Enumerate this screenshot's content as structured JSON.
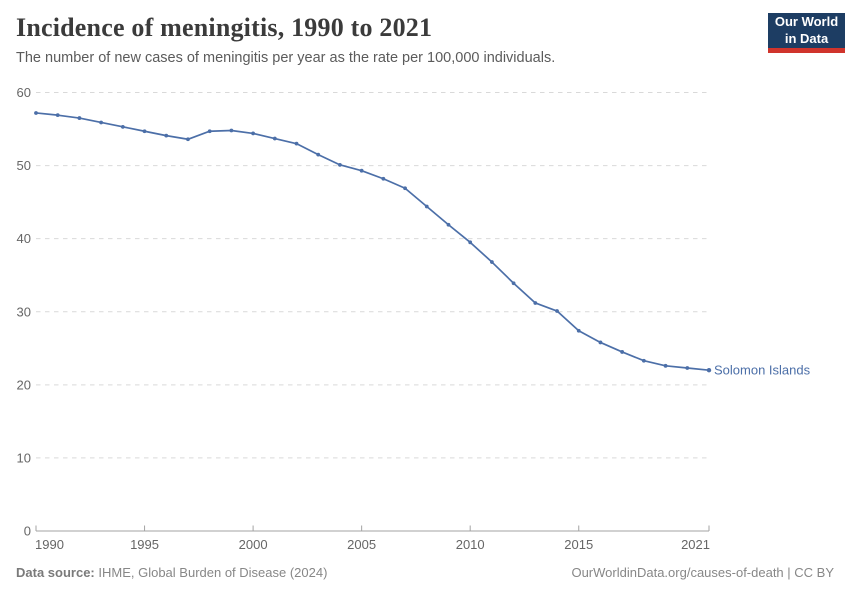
{
  "header": {
    "title": "Incidence of meningitis, 1990 to 2021",
    "subtitle": "The number of new cases of meningitis per year as the rate per 100,000 individuals.",
    "logo": {
      "line1": "Our World",
      "line2": "in Data",
      "bg_color": "#1d3d63",
      "accent_color": "#d0342c"
    }
  },
  "chart_data": {
    "type": "line",
    "title": "Incidence of meningitis, 1990 to 2021",
    "xlabel": "",
    "ylabel": "",
    "xlim": [
      1990,
      2021
    ],
    "ylim": [
      0,
      60
    ],
    "x_ticks": [
      1990,
      1995,
      2000,
      2005,
      2010,
      2015,
      2021
    ],
    "y_ticks": [
      0,
      10,
      20,
      30,
      40,
      50,
      60
    ],
    "grid": "horizontal-dashed",
    "legend_position": "end-of-line",
    "x": [
      1990,
      1991,
      1992,
      1993,
      1994,
      1995,
      1996,
      1997,
      1998,
      1999,
      2000,
      2001,
      2002,
      2003,
      2004,
      2005,
      2006,
      2007,
      2008,
      2009,
      2010,
      2011,
      2012,
      2013,
      2014,
      2015,
      2016,
      2017,
      2018,
      2019,
      2020,
      2021
    ],
    "series": [
      {
        "name": "Solomon Islands",
        "color": "#4c6fa8",
        "values": [
          57.2,
          56.9,
          56.5,
          55.9,
          55.3,
          54.7,
          54.1,
          53.6,
          54.7,
          54.8,
          54.4,
          53.7,
          53.0,
          51.5,
          50.1,
          49.3,
          48.2,
          46.9,
          44.4,
          41.9,
          39.5,
          36.8,
          33.9,
          31.2,
          30.1,
          27.4,
          25.8,
          24.5,
          23.3,
          22.6,
          22.3,
          22.0
        ]
      }
    ]
  },
  "footer": {
    "source_label": "Data source:",
    "source_text": "IHME, Global Burden of Disease (2024)",
    "link_text": "OurWorldinData.org/causes-of-death | CC BY"
  }
}
